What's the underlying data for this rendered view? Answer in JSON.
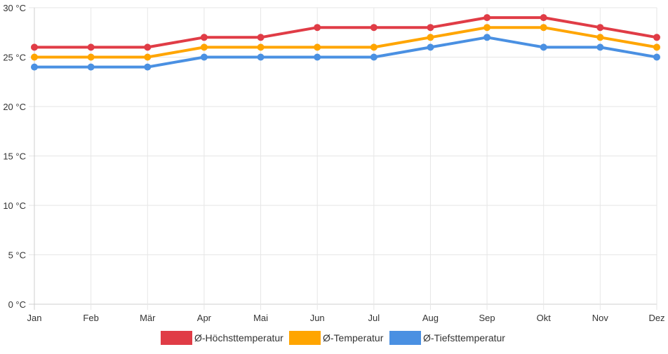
{
  "chart_data": {
    "type": "line",
    "categories": [
      "Jan",
      "Feb",
      "Mär",
      "Apr",
      "Mai",
      "Jun",
      "Jul",
      "Aug",
      "Sep",
      "Okt",
      "Nov",
      "Dez"
    ],
    "y_ticks": [
      "0 °C",
      "5 °C",
      "10 °C",
      "15 °C",
      "20 °C",
      "25 °C",
      "30 °C"
    ],
    "ylim": [
      0,
      30
    ],
    "grid": true,
    "legend_position": "bottom-center",
    "series": [
      {
        "name": "Ø-Höchsttemperatur",
        "color": "#e03c46",
        "values": [
          26,
          26,
          26,
          27,
          27,
          28,
          28,
          28,
          29,
          29,
          28,
          27
        ]
      },
      {
        "name": "Ø-Temperatur",
        "color": "#ffa500",
        "values": [
          25,
          25,
          25,
          26,
          26,
          26,
          26,
          27,
          28,
          28,
          27,
          26
        ]
      },
      {
        "name": "Ø-Tiefsttemperatur",
        "color": "#4a90e2",
        "values": [
          24,
          24,
          24,
          25,
          25,
          25,
          25,
          26,
          27,
          26,
          26,
          25
        ]
      }
    ]
  }
}
